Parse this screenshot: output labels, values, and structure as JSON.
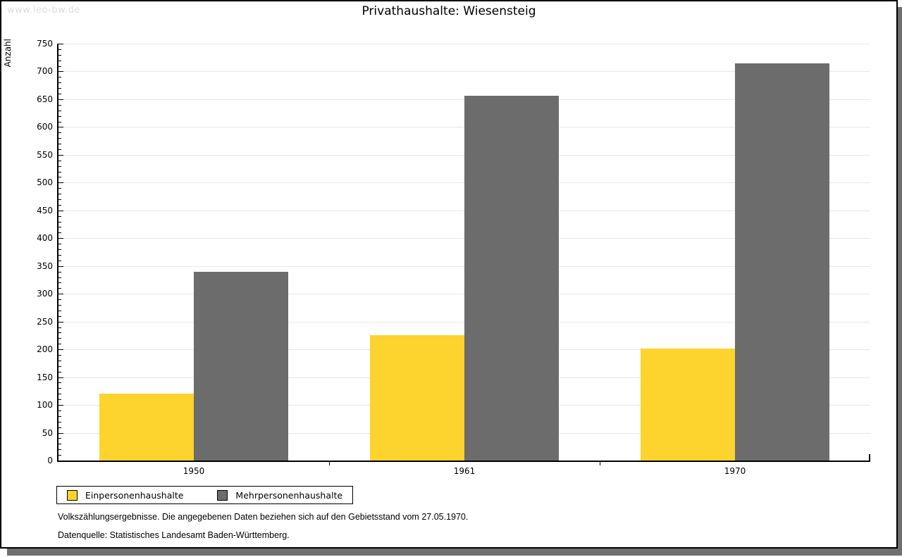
{
  "watermark": "www.leo-bw.de",
  "title": "Privathaushalte: Wiesensteig",
  "y_axis_label": "Anzahl",
  "footnotes": {
    "line1": "Volkszählungsergebnisse. Die angegebenen Daten beziehen sich auf den Gebietsstand vom 27.05.1970.",
    "line2": "Datenquelle: Statistisches Landesamt Baden-Württemberg."
  },
  "colors": {
    "series_yellow": "#fdd32d",
    "series_gray": "#6c6c6c",
    "gridline": "#e7e7e7",
    "frame_shadow": "#6f6f6f",
    "watermark": "#dcdcdc"
  },
  "chart_data": {
    "type": "bar",
    "categories": [
      "1950",
      "1961",
      "1970"
    ],
    "series": [
      {
        "name": "Einpersonenhaushalte",
        "color": "#fdd32d",
        "values": [
          120,
          225,
          202
        ]
      },
      {
        "name": "Mehrpersonenhaushalte",
        "color": "#6c6c6c",
        "values": [
          340,
          656,
          714
        ]
      }
    ],
    "title": "Privathaushalte: Wiesensteig",
    "xlabel": "",
    "ylabel": "Anzahl",
    "ylim": [
      0,
      750
    ],
    "y_major_step": 50,
    "y_minor_step": 10,
    "grid": true,
    "legend_position": "bottom-left"
  }
}
